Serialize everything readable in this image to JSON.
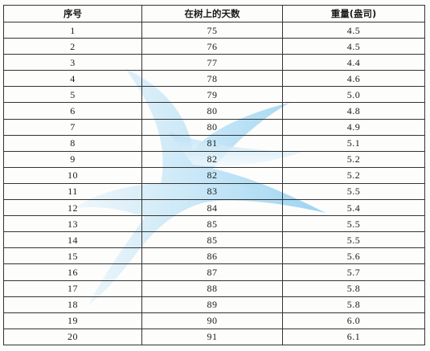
{
  "table": {
    "headers": [
      "序号",
      "在树上的天数",
      "重量(盎司)"
    ],
    "rows": [
      [
        "1",
        "75",
        "4.5"
      ],
      [
        "2",
        "76",
        "4.5"
      ],
      [
        "3",
        "77",
        "4.4"
      ],
      [
        "4",
        "78",
        "4.6"
      ],
      [
        "5",
        "79",
        "5.0"
      ],
      [
        "6",
        "80",
        "4.8"
      ],
      [
        "7",
        "80",
        "4.9"
      ],
      [
        "8",
        "81",
        "5.1"
      ],
      [
        "9",
        "82",
        "5.2"
      ],
      [
        "10",
        "82",
        "5.2"
      ],
      [
        "11",
        "83",
        "5.5"
      ],
      [
        "12",
        "84",
        "5.4"
      ],
      [
        "13",
        "85",
        "5.5"
      ],
      [
        "14",
        "85",
        "5.5"
      ],
      [
        "15",
        "86",
        "5.6"
      ],
      [
        "16",
        "87",
        "5.7"
      ],
      [
        "17",
        "88",
        "5.8"
      ],
      [
        "18",
        "89",
        "5.8"
      ],
      [
        "19",
        "90",
        "6.0"
      ],
      [
        "20",
        "91",
        "6.1"
      ]
    ]
  },
  "watermark": {
    "icon": "bird-watermark-icon",
    "color_light": "#cfe9f8",
    "color_dark": "#5bb8ea"
  }
}
